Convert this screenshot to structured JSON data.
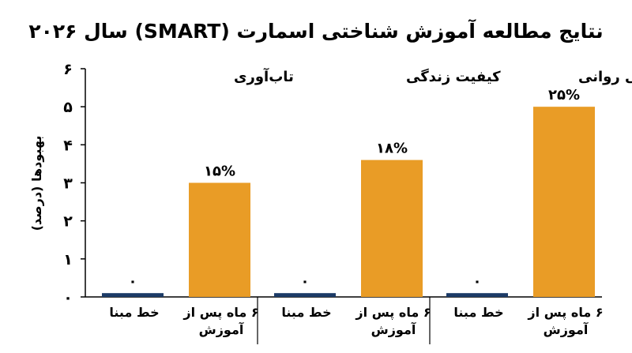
{
  "chart_data": {
    "type": "bar",
    "title": "نتایج مطالعه آموزش شناختی اسمارت (SMART) سال ۲۰۲۶",
    "ylabel": "بهبودها (درصد)",
    "ylim": [
      0,
      6
    ],
    "yticks": [
      "۰",
      "۱",
      "۲",
      "۳",
      "۴",
      "۵",
      "۶"
    ],
    "categories": [
      "خط مبنا",
      "۶ ماه پس از آموزش"
    ],
    "colors": {
      "baseline": "#1b3a66",
      "after": "#e99c26"
    },
    "panels": [
      {
        "title": "کاهش پریشانی روانی",
        "values": [
          0.1,
          5
        ],
        "labels": [
          "۰",
          "۲۵%"
        ]
      },
      {
        "title": "کیفیت زندگی",
        "values": [
          0.1,
          3.6
        ],
        "labels": [
          "۰",
          "۱۸%"
        ]
      },
      {
        "title": "تاب‌آوری",
        "values": [
          0.1,
          3
        ],
        "labels": [
          "۰",
          "۱۵%"
        ]
      }
    ]
  }
}
